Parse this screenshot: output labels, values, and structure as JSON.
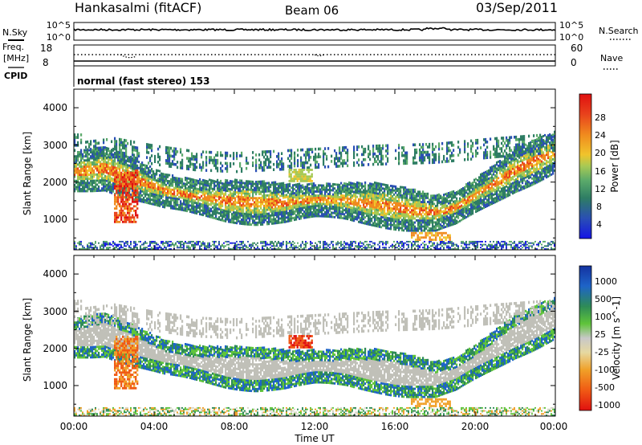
{
  "header": {
    "station": "Hankasalmi (fitACF)",
    "beam": "Beam 06",
    "date": "03/Sep/2011"
  },
  "noise_panel": {
    "left_label": "N.Sky",
    "left_ticks": [
      "10^5",
      "10^0"
    ],
    "right_label": "N.Search",
    "right_ticks": [
      "10^5",
      "10^0"
    ]
  },
  "freq_panel": {
    "left_label_1": "Freq.",
    "left_label_2": "[MHz]",
    "left_ticks": [
      "18",
      "8"
    ],
    "right_label": "Nave",
    "right_ticks": [
      "60",
      "0"
    ]
  },
  "cpid": {
    "label": "CPID",
    "text": "normal (fast stereo) 153"
  },
  "colors": {
    "power_scale": [
      "#1414e6",
      "#2a4fb4",
      "#2e7d64",
      "#5aa96a",
      "#a6c955",
      "#f0c42c",
      "#f08a1e",
      "#e8421c",
      "#e01010"
    ],
    "velocity_scale": [
      "#e01010",
      "#f05a14",
      "#f0a028",
      "#d7d7c8",
      "#c8c8c8",
      "#5fc43a",
      "#2e8b57",
      "#1e64c8",
      "#1432a0"
    ],
    "ground_scatter": "#c0c0b8"
  },
  "chart_data": [
    {
      "type": "heatmap",
      "panel": "power",
      "xlabel": "",
      "ylabel": "Slant Range [km]",
      "x_range_hours": [
        0,
        24
      ],
      "ylim": [
        180,
        4500
      ],
      "y_ticks": [
        "4000",
        "3000",
        "2000",
        "1000"
      ],
      "colorbar_label": "Power [dB]",
      "colorbar_ticks": [
        "28",
        "24",
        "20",
        "16",
        "12",
        "8",
        "4"
      ],
      "colorbar_range": [
        0,
        32
      ],
      "features": [
        {
          "name": "main echo band",
          "t": [
            0.0,
            1.5,
            3.0,
            4.5,
            6.0,
            7.5,
            9.0,
            10.5,
            12.0,
            13.5,
            15.0,
            16.5,
            18.0,
            19.0,
            20.5,
            22.0,
            24.0
          ],
          "range_km": [
            2250,
            2350,
            2050,
            1750,
            1600,
            1480,
            1420,
            1420,
            1500,
            1480,
            1380,
            1250,
            1150,
            1300,
            1800,
            2300,
            2800
          ],
          "power_db": 20
        },
        {
          "name": "high power column",
          "t": [
            2.0,
            2.5,
            3.0
          ],
          "range_km": [
            1300,
            1700,
            2000
          ],
          "power_db": 28
        },
        {
          "name": "isolated patch",
          "t": [
            10.8,
            11.8
          ],
          "range_km": [
            2150,
            2150
          ],
          "power_db": 16
        },
        {
          "name": "upper diffuse band",
          "t": [
            0.5,
            2.0,
            4.0,
            6.0,
            8.0,
            15.0,
            18.0,
            21.0,
            23.5
          ],
          "range_km": [
            2800,
            2900,
            2700,
            2550,
            2500,
            2700,
            2750,
            2900,
            3000
          ],
          "power_db": 6
        }
      ]
    },
    {
      "type": "heatmap",
      "panel": "velocity",
      "xlabel": "Time UT",
      "ylabel": "Slant Range [km]",
      "x_ticks": [
        "00:00",
        "04:00",
        "08:00",
        "12:00",
        "16:00",
        "20:00",
        "00:00"
      ],
      "x_range_hours": [
        0,
        24
      ],
      "ylim": [
        180,
        4500
      ],
      "y_ticks": [
        "4000",
        "3000",
        "2000",
        "1000"
      ],
      "colorbar_label": "Velocity [m s^-1]",
      "colorbar_ticks": [
        "1000",
        "500",
        "100",
        "25",
        "-25",
        "-100",
        "-500",
        "-1000"
      ],
      "colorbar_range": [
        -1200,
        1200
      ],
      "features": [
        {
          "name": "ground scatter band",
          "t": [
            0.0,
            1.5,
            3.0,
            4.5,
            6.0,
            7.5,
            9.0,
            10.5,
            12.0,
            13.5,
            15.0,
            16.5,
            18.0,
            19.0,
            20.5,
            22.0,
            24.0
          ],
          "range_km": [
            2250,
            2350,
            2050,
            1750,
            1600,
            1480,
            1420,
            1420,
            1500,
            1480,
            1380,
            1250,
            1150,
            1300,
            1800,
            2300,
            2800
          ],
          "velocity_ms": 0
        },
        {
          "name": "negative velocity column",
          "t": [
            2.0,
            3.5
          ],
          "range_km": [
            1400,
            1900
          ],
          "velocity_ms": -300
        },
        {
          "name": "negative velocity patch",
          "t": [
            11.5,
            12.3
          ],
          "range_km": [
            2200,
            2200
          ],
          "velocity_ms": -800
        },
        {
          "name": "low range patches",
          "t": [
            17.0,
            18.5
          ],
          "range_km": [
            500,
            500
          ],
          "velocity_ms": -200
        }
      ]
    }
  ]
}
